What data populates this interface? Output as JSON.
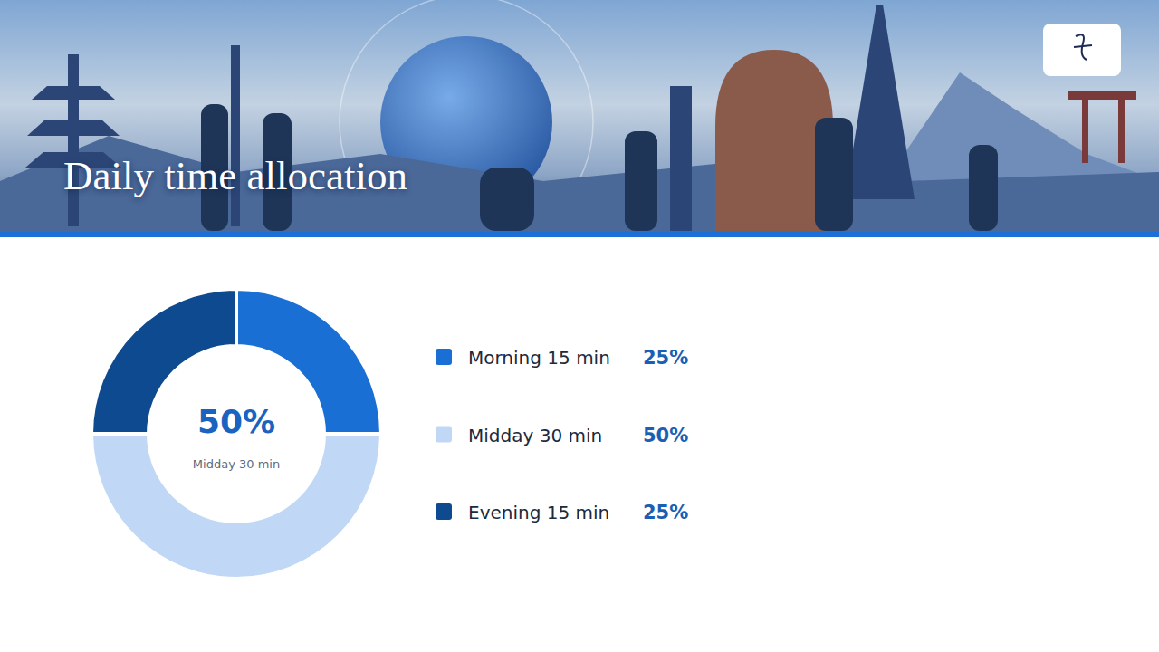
{
  "chart_data": {
    "type": "pie",
    "title": "Daily time allocation",
    "categories": [
      "Morning 15 min",
      "Midday 30 min",
      "Evening 15 min"
    ],
    "values": [
      25,
      50,
      25
    ],
    "value_labels": [
      "25%",
      "50%",
      "25%"
    ],
    "colors": [
      "#1a6fd4",
      "#c0d8f5",
      "#0d4a8f"
    ],
    "data_labels": true,
    "legend": "right"
  }
}
